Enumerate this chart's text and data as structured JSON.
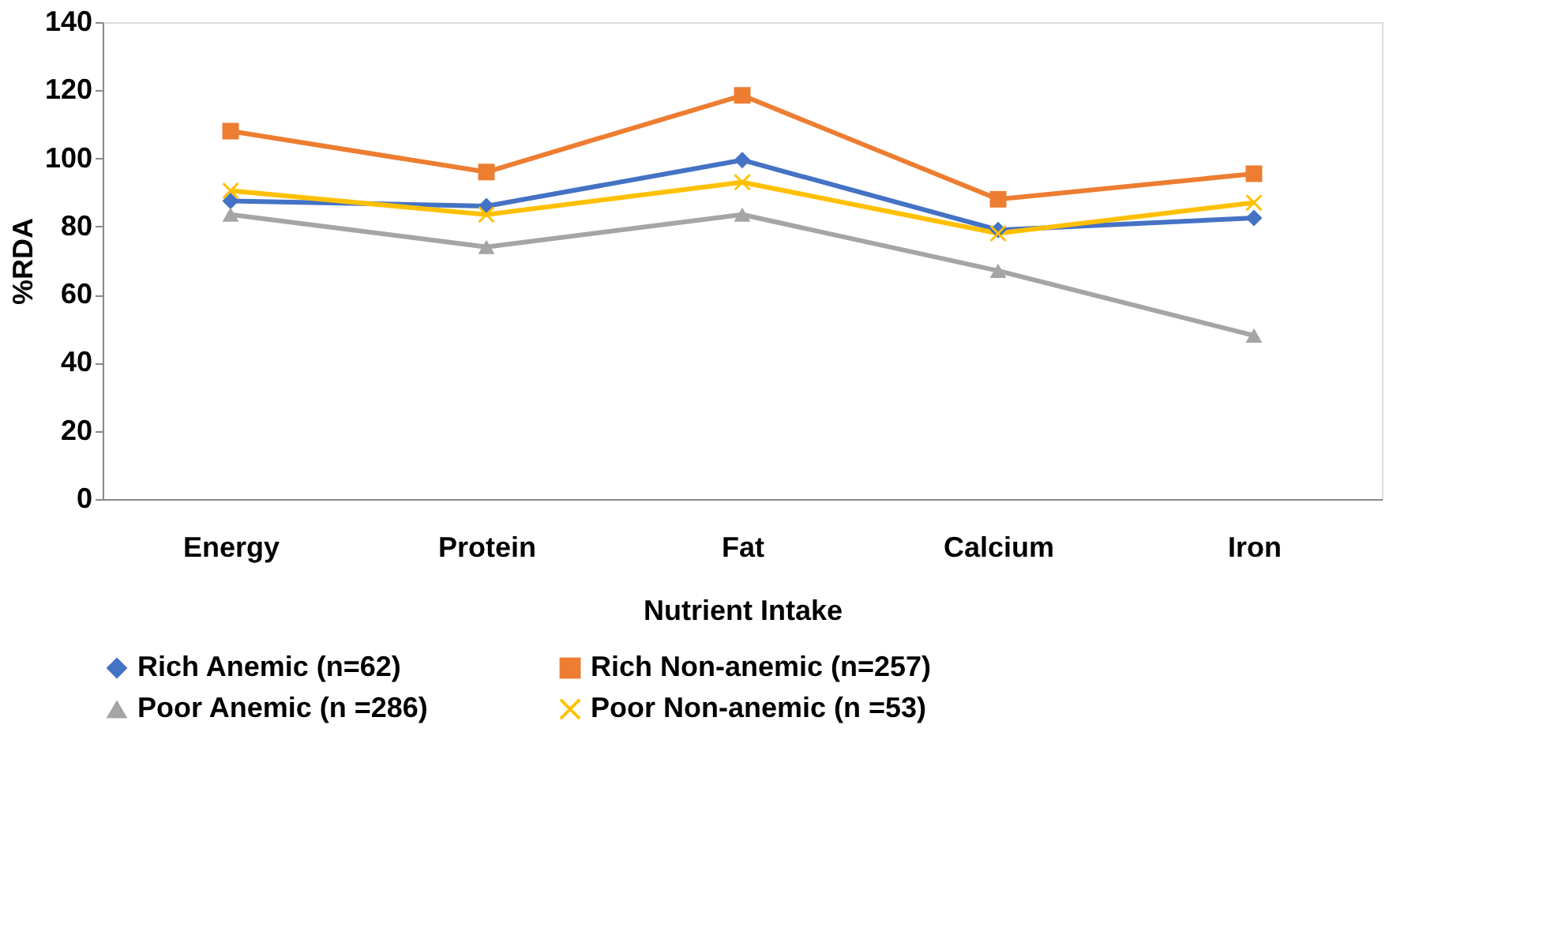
{
  "chart_data": {
    "type": "line",
    "xlabel": "Nutrient Intake",
    "ylabel": "%RDA",
    "categories": [
      "Energy",
      "Protein",
      "Fat",
      "Calcium",
      "Iron"
    ],
    "ylim": [
      0,
      140
    ],
    "yticks": [
      0,
      20,
      40,
      60,
      80,
      100,
      120,
      140
    ],
    "grid": false,
    "legend": "bottom",
    "line_style": "solid",
    "series": [
      {
        "name": "Rich Anemic  (n=62)",
        "color": "#4472c4",
        "marker": "diamond",
        "values": [
          87.5,
          86,
          99.5,
          79,
          82.5
        ]
      },
      {
        "name": "Rich Non-anemic  (n=257)",
        "color": "#ed7d31",
        "marker": "square",
        "values": [
          108,
          96,
          118.5,
          88,
          95.5
        ]
      },
      {
        "name": "Poor Anemic (n =286)",
        "color": "#a5a5a5",
        "marker": "triangle",
        "values": [
          83.5,
          74,
          83.5,
          67,
          48
        ]
      },
      {
        "name": "Poor Non-anemic (n =53)",
        "color": "#ffc000",
        "marker": "cross",
        "values": [
          90.5,
          83.5,
          93,
          78,
          87
        ]
      }
    ]
  }
}
